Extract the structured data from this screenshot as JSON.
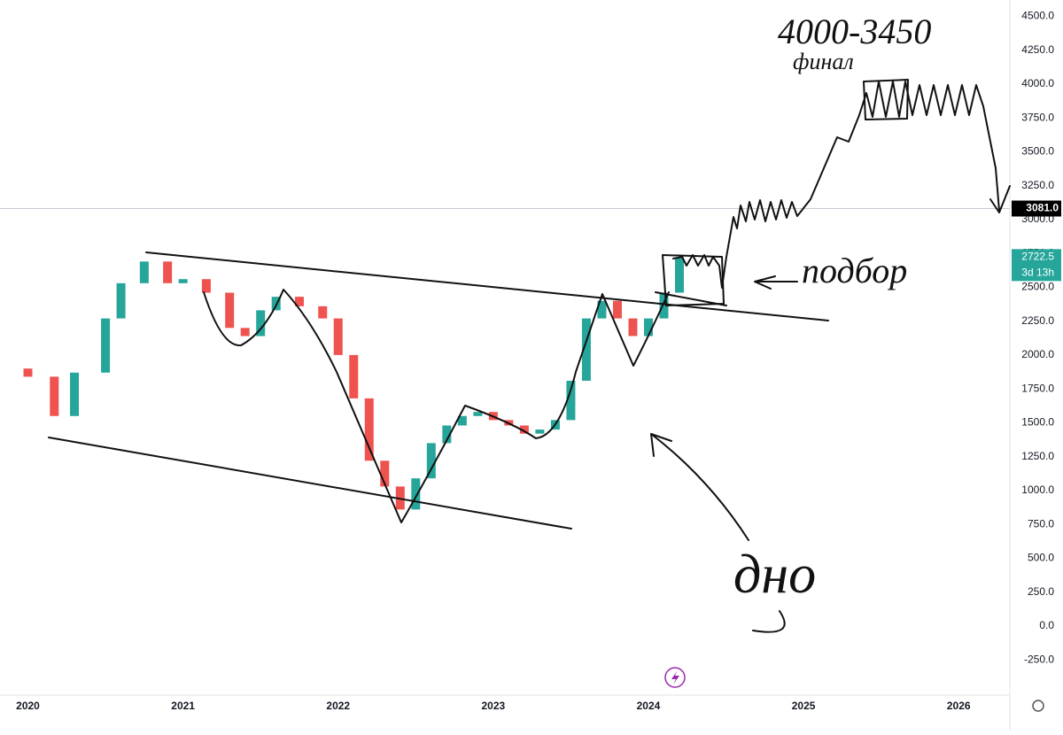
{
  "chart_data": {
    "type": "candlestick",
    "x": [
      2019.82,
      2020.0,
      2020.17,
      2020.3,
      2020.5,
      2020.6,
      2020.75,
      2020.9,
      2021.0,
      2021.15,
      2021.3,
      2021.4,
      2021.5,
      2021.6,
      2021.75,
      2021.9,
      2022.0,
      2022.1,
      2022.2,
      2022.3,
      2022.4,
      2022.5,
      2022.6,
      2022.7,
      2022.8,
      2022.9,
      2023.0,
      2023.1,
      2023.2,
      2023.3,
      2023.4,
      2023.5,
      2023.6,
      2023.7,
      2023.8,
      2023.9,
      2024.0,
      2024.1,
      2024.2
    ],
    "series": [
      {
        "values": [
          1900,
          1840,
          1550,
          1870,
          2270,
          2530,
          2690,
          2530,
          2560,
          2460,
          2200,
          2140,
          2330,
          2430,
          2360,
          2270,
          2000,
          1680,
          1220,
          1030,
          860,
          1090,
          1350,
          1480,
          1550,
          1580,
          1520,
          1480,
          1420,
          1450,
          1520,
          1810,
          2270,
          2400,
          2270,
          2140,
          2270,
          2460,
          2722.5
        ],
        "up_color": "#26a69a",
        "down_color": "#ef5350"
      }
    ],
    "xlim": [
      2019.82,
      2026.33
    ],
    "xticks": [
      2020,
      2021,
      2022,
      2023,
      2024,
      2025,
      2026
    ],
    "ylim": [
      -510,
      4620
    ],
    "yticks": [
      {
        "value": -250,
        "label": "-250.0"
      },
      {
        "value": 0,
        "label": "0.0"
      },
      {
        "value": 250,
        "label": "250.0"
      },
      {
        "value": 500,
        "label": "500.0"
      },
      {
        "value": 750,
        "label": "750.0"
      },
      {
        "value": 1000,
        "label": "1000.0"
      },
      {
        "value": 1250,
        "label": "1250.0"
      },
      {
        "value": 1500,
        "label": "1500.0"
      },
      {
        "value": 1750,
        "label": "1750.0"
      },
      {
        "value": 2000,
        "label": "2000.0"
      },
      {
        "value": 2250,
        "label": "2250.0"
      },
      {
        "value": 2500,
        "label": "2500.0"
      },
      {
        "value": 2750,
        "label": "2750.0"
      },
      {
        "value": 3000,
        "label": "3000.0"
      },
      {
        "value": 3250,
        "label": "3250.0"
      },
      {
        "value": 3500,
        "label": "3500.0"
      },
      {
        "value": 3750,
        "label": "3750.0"
      },
      {
        "value": 4000,
        "label": "4000.0"
      },
      {
        "value": 4250,
        "label": "4250.0"
      },
      {
        "value": 4500,
        "label": "4500.0"
      }
    ],
    "price_line": {
      "value": 3081,
      "label": "3081.0"
    },
    "last_price": 2722.5,
    "countdown": "3d 13h",
    "annotations": [
      "4000-3450",
      "финал",
      "подбор",
      "дно"
    ]
  }
}
